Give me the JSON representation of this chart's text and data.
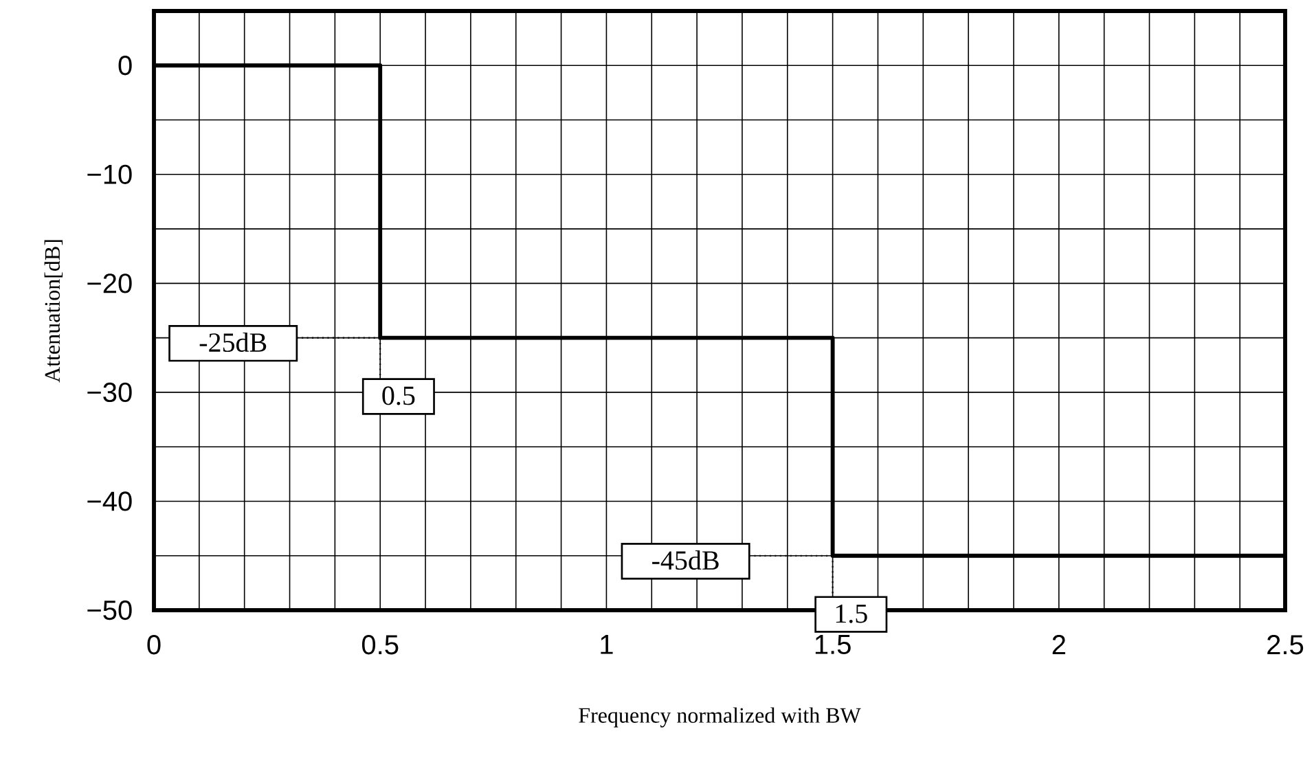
{
  "chart_data": {
    "type": "line",
    "xlabel": "Frequency normalized with BW",
    "ylabel": "Attenuation[dB]",
    "x": [
      0,
      0.5,
      0.5,
      1.5,
      1.5,
      2.5
    ],
    "series": [
      {
        "color": "#000000",
        "values": [
          0,
          0,
          -25,
          -25,
          -45,
          -45
        ]
      }
    ],
    "xlim": [
      0,
      2.5
    ],
    "ylim": [
      -50,
      5
    ],
    "xticks": [
      0,
      0.5,
      1,
      1.5,
      2,
      2.5
    ],
    "yticks": [
      {
        "value": -50,
        "label": "−50"
      },
      {
        "value": -40,
        "label": "−40"
      },
      {
        "value": -30,
        "label": "−30"
      },
      {
        "value": -20,
        "label": "−20"
      },
      {
        "value": -10,
        "label": "−10"
      },
      0
    ],
    "grid": true,
    "marker": "none",
    "line_style": "solid",
    "annotations": [
      "-25dB",
      {
        "text": "0.5",
        "x": 0.5,
        "y": -25
      },
      "-45dB",
      {
        "text": "1.5",
        "x": 1.5,
        "y": -45
      }
    ]
  }
}
